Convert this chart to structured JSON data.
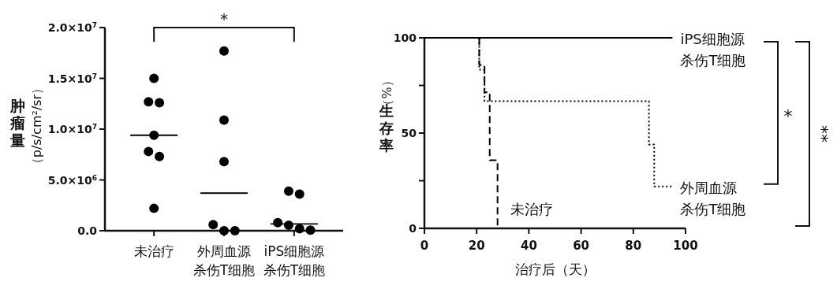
{
  "chart_data": [
    {
      "type": "scatter",
      "ylabel": "肿瘤量（p/s/cm²/sr）",
      "categories": [
        "未治疗",
        "外周血源杀伤T细胞",
        "iPS细胞源杀伤T细胞"
      ],
      "ylim": [
        0,
        20000000
      ],
      "yticks": [
        {
          "value": 0,
          "label": "0.0"
        },
        {
          "value": 5000000,
          "label": "5.0×10$^{6}$"
        },
        {
          "value": 10000000,
          "label": "1.0×10$^{7}$"
        },
        {
          "value": 15000000,
          "label": "1.5×10$^{7}$"
        },
        {
          "value": 20000000,
          "label": "2.0×10$^{7}$"
        }
      ],
      "grid": false,
      "annotations": [
        "*"
      ],
      "ref_lines": [
        {
          "axis": "y",
          "value": 9400000,
          "color": "#000000"
        },
        {
          "axis": "y",
          "value": 3700000,
          "color": "#000000"
        },
        {
          "axis": "y",
          "value": 670000,
          "color": "#000000"
        }
      ],
      "series": [
        {
          "type": "scatter",
          "marker": "circle",
          "color": "#000000",
          "x": [
            "未治疗",
            "未治疗",
            "未治疗",
            "未治疗",
            "未治疗",
            "未治疗",
            "未治疗",
            "外周血源杀伤T细胞",
            "外周血源杀伤T细胞",
            "外周血源杀伤T细胞",
            "外周血源杀伤T细胞",
            "外周血源杀伤T细胞",
            "外周血源杀伤T细胞",
            "iPS细胞源杀伤T细胞",
            "iPS细胞源杀伤T细胞",
            "iPS细胞源杀伤T细胞",
            "iPS细胞源杀伤T细胞",
            "iPS细胞源杀伤T细胞",
            "iPS细胞源杀伤T细胞"
          ],
          "values": [
            15000000,
            12600000,
            12700000,
            9400000,
            7800000,
            7300000,
            2200000,
            17700000,
            10900000,
            6800000,
            600000,
            0,
            0,
            3600000,
            3900000,
            800000,
            50000,
            200000,
            550000
          ]
        }
      ]
    },
    {
      "type": "step",
      "xlabel": "治疗后（天）",
      "ylabel": "生存率（%）",
      "xlim": [
        0,
        100
      ],
      "xticks": [
        0,
        20,
        40,
        60,
        80,
        100
      ],
      "ylim": [
        0,
        100
      ],
      "yticks": [
        0,
        {
          "value": 25,
          "label": null
        },
        50,
        {
          "value": 75,
          "label": null
        },
        100
      ],
      "grid": false,
      "annotations": [
        "*",
        "**"
      ],
      "series": [
        {
          "name": "iPS细胞源杀伤T细胞",
          "color": "#000000",
          "line_style": "solid",
          "x": [
            0,
            95
          ],
          "values": [
            100,
            100
          ]
        },
        {
          "name": "外周血源杀伤T细胞",
          "color": "#000000",
          "line_style": "dotted",
          "x": [
            0,
            21,
            23,
            86,
            88,
            95
          ],
          "values": [
            100,
            83.3,
            66.7,
            44,
            22,
            22
          ]
        },
        {
          "name": "未治疗",
          "color": "#000000",
          "line_style": "dashed",
          "x": [
            0,
            21,
            23,
            25,
            28
          ],
          "values": [
            100,
            85.7,
            71.4,
            35.7,
            0
          ]
        }
      ]
    }
  ]
}
